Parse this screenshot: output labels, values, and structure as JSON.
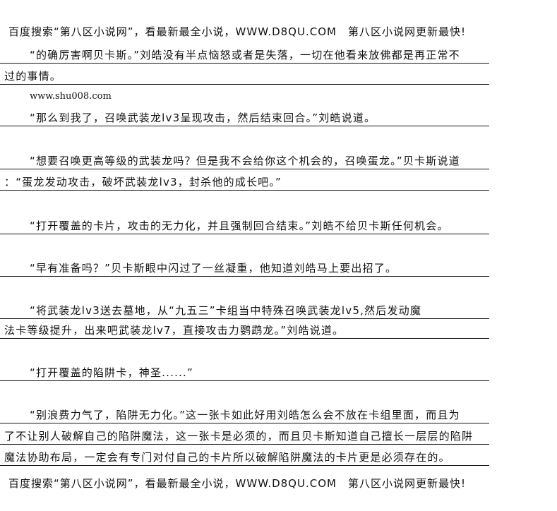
{
  "header": "百度搜索“第八区小说网”，看最新最全小说，WWW.D8QU.COM　第八区小说网更新最快!",
  "lines": [
    "“的确厉害啊贝卡斯。”刘皓没有半点恼怒或者是失落，一切在他看来放佛都是再正常不",
    "过的事情。",
    "www.shu008.com",
    "“那么到我了，召唤武装龙lv3呈现攻击，然后结束回合。”刘皓说道。",
    "“想要召唤更高等级的武装龙吗？但是我不会给你这个机会的，召唤蛋龙。”贝卡斯说道",
    "：“蛋龙发动攻击，破坏武装龙lv3，封杀他的成长吧。”",
    "“打开覆盖的卡片，攻击的无力化，并且强制回合结束。”刘皓不给贝卡斯任何机会。",
    "“早有准备吗？”贝卡斯眼中闪过了一丝凝重，他知道刘皓马上要出招了。",
    "“将武装龙lv3送去墓地，从“九五三”卡组当中特殊召唤武装龙lv5,然后发动魔",
    "法卡等级提升，出来吧武装龙lv7，直接攻击力鹦鹉龙。”刘皓说道。",
    "“打开覆盖的陷阱卡，神圣......”",
    "“别浪费力气了，陷阱无力化。”这一张卡如此好用刘皓怎么会不放在卡组里面，而且为",
    "了不让别人破解自己的陷阱魔法，这一张卡是必须的，而且贝卡斯知道自己擅长一层层的陷阱",
    "魔法协助布局，一定会有专门对付自己的卡片所以破解陷阱魔法的卡片更是必须存在的。"
  ],
  "footer": "百度搜索“第八区小说网”，看最新最全小说，WWW.D8QU.COM　第八区小说网更新最快!"
}
